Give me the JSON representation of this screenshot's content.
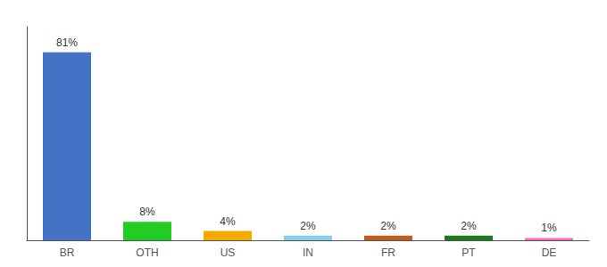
{
  "chart_data": {
    "type": "bar",
    "categories": [
      "BR",
      "OTH",
      "US",
      "IN",
      "FR",
      "PT",
      "DE"
    ],
    "values": [
      81,
      8,
      4,
      2,
      2,
      2,
      1
    ],
    "value_labels": [
      "81%",
      "8%",
      "4%",
      "2%",
      "2%",
      "2%",
      "1%"
    ],
    "colors": [
      "#4472C4",
      "#22CC22",
      "#F4A800",
      "#87CEEB",
      "#C06020",
      "#1A7A1A",
      "#FF69B4"
    ],
    "ylim": [
      0,
      92
    ],
    "grid": false,
    "data_labels": true,
    "tick_labels": "x"
  }
}
